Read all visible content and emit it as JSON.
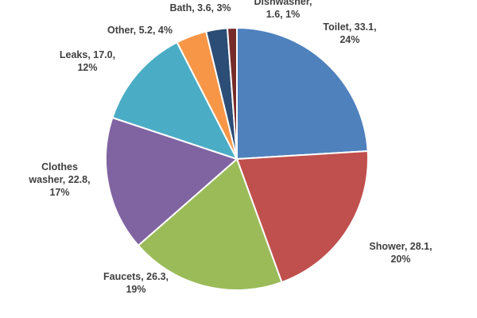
{
  "chart_data": {
    "type": "pie",
    "title": "",
    "legend": "none",
    "slices": [
      {
        "name": "Toilet",
        "value": 33.1,
        "percent": "24%",
        "color": "#4f81bd",
        "label_lines": [
          "Toilet, 33.1,",
          "24%"
        ]
      },
      {
        "name": "Shower",
        "value": 28.1,
        "percent": "20%",
        "color": "#c0504d",
        "label_lines": [
          "Shower, 28.1,",
          "20%"
        ]
      },
      {
        "name": "Faucets",
        "value": 26.3,
        "percent": "19%",
        "color": "#9bbb59",
        "label_lines": [
          "Faucets, 26.3,",
          "19%"
        ]
      },
      {
        "name": "Clothes washer",
        "value": 22.8,
        "percent": "17%",
        "color": "#8064a2",
        "label_lines": [
          "Clothes",
          "washer, 22.8,",
          "17%"
        ]
      },
      {
        "name": "Leaks",
        "value": 17.0,
        "percent": "12%",
        "color": "#4bacc6",
        "label_lines": [
          "Leaks, 17.0,",
          "12%"
        ]
      },
      {
        "name": "Other",
        "value": 5.2,
        "percent": "4%",
        "color": "#f79646",
        "label_lines": [
          "Other, 5.2, 4%"
        ]
      },
      {
        "name": "Bath",
        "value": 3.6,
        "percent": "3%",
        "color": "#2c4d75",
        "label_lines": [
          "Bath, 3.6, 3%"
        ]
      },
      {
        "name": "Dishwasher",
        "value": 1.6,
        "percent": "1%",
        "color": "#772c2a",
        "label_lines": [
          "Dishwasher,",
          "1.6, 1%"
        ]
      }
    ]
  }
}
